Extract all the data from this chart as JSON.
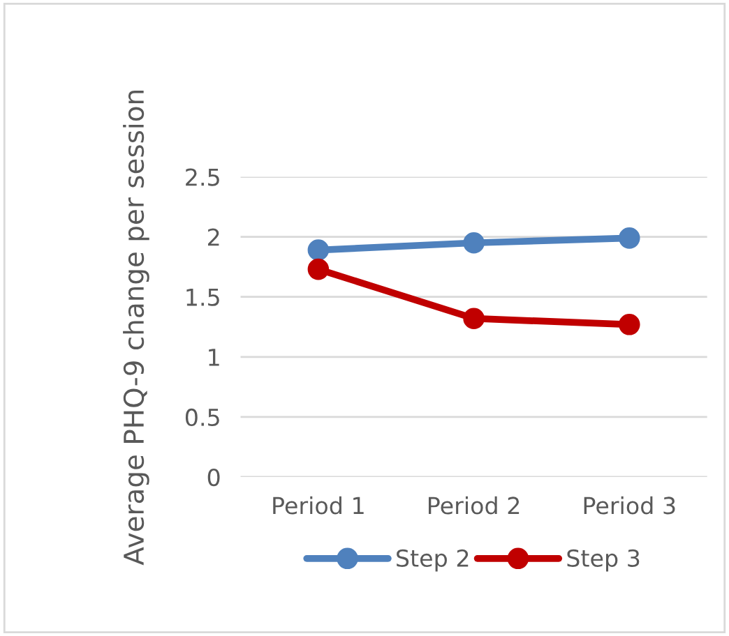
{
  "chart_data": {
    "type": "line",
    "ylabel": "Average PHQ-9 change per session",
    "categories": [
      "Period 1",
      "Period 2",
      "Period 3"
    ],
    "series": [
      {
        "name": "Step 2",
        "color": "#4f81bd",
        "values": [
          1.89,
          1.95,
          1.99
        ]
      },
      {
        "name": "Step 3",
        "color": "#c00000",
        "values": [
          1.73,
          1.32,
          1.27
        ]
      }
    ],
    "ylim": [
      0,
      2.5
    ],
    "yticks": [
      0,
      0.5,
      1,
      1.5,
      2,
      2.5
    ],
    "grid": "y",
    "legend": "bottom",
    "marker": "circle",
    "line_style": "solid"
  }
}
